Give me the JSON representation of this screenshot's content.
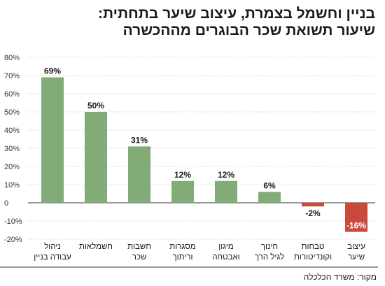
{
  "title_lines": [
    "בניין וחשמל בצמרת, עיצוב שיער בתחתית:",
    "שיעור תשואת שכר הבוגרים מההכשרה"
  ],
  "source": "מקור: משרד הכלכלה",
  "colors": {
    "positive": "#82ab78",
    "negative": "#c94a3b",
    "grid": "#c8c8c8",
    "axis": "#333333"
  },
  "chart_data": {
    "type": "bar",
    "title": "בניין וחשמל בצמרת, עיצוב שיער בתחתית: שיעור תשואת שכר הבוגרים מההכשרה",
    "categories": [
      [
        "ניהול",
        "עבודה בניין"
      ],
      [
        "חשמלאות"
      ],
      [
        "חשבות",
        "שכר"
      ],
      [
        "מסגרות",
        "וריתוך"
      ],
      [
        "מיגון",
        "ואבטחה"
      ],
      [
        "חינוך",
        "לגיל הרך"
      ],
      [
        "טבחות",
        "וקונדיטורות"
      ],
      [
        "עיצוב",
        "שיער"
      ]
    ],
    "values": [
      69,
      50,
      31,
      12,
      12,
      6,
      -2,
      -16
    ],
    "value_labels": [
      "69%",
      "50%",
      "31%",
      "12%",
      "12%",
      "6%",
      "-2%",
      "-16%"
    ],
    "y_ticks": [
      80,
      70,
      60,
      50,
      40,
      30,
      20,
      10,
      0,
      -10,
      -20
    ],
    "y_tick_labels": [
      "80%",
      "70%",
      "60%",
      "50%",
      "40%",
      "30%",
      "20%",
      "10%",
      "0",
      "-10%",
      "-20%"
    ],
    "ylim": [
      -20,
      80
    ],
    "grid": true,
    "xlabel": "",
    "ylabel": ""
  }
}
